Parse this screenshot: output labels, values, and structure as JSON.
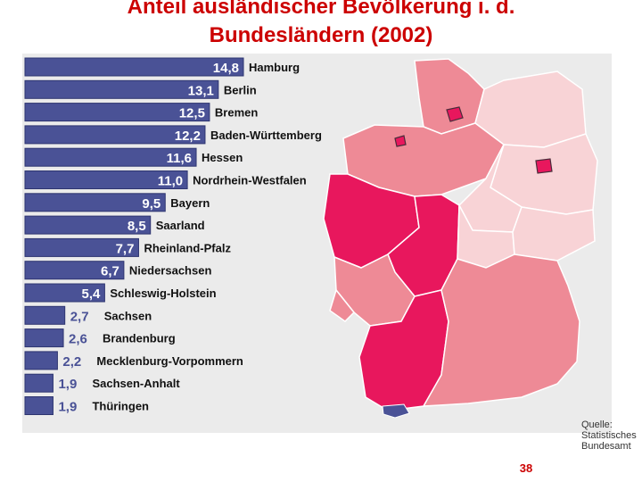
{
  "slide": {
    "title_line1": "Anteil ausländischer Bevölkerung i. d.",
    "title_line2": "Bundesländern (2002)",
    "page_number": "38"
  },
  "source": {
    "line1": "Quelle:",
    "line2": "Statistisches",
    "line3": "Bundesamt"
  },
  "colors": {
    "bar_fill": "#4a5296",
    "bar_border": "#2e3570",
    "map_dark": "#e8175d",
    "map_mid": "#ee8a96",
    "map_light": "#f8d3d6",
    "map_border": "#ffffff",
    "background": "#ebebeb",
    "title": "#cc0000"
  },
  "chart_data": {
    "type": "bar",
    "orientation": "horizontal",
    "title": "Anteil ausländischer Bevölkerung i. d. Bundesländern (2002)",
    "categories": [
      "Hamburg",
      "Berlin",
      "Bremen",
      "Baden-Württemberg",
      "Hessen",
      "Nordrhein-Westfalen",
      "Bayern",
      "Saarland",
      "Rheinland-Pfalz",
      "Niedersachsen",
      "Schleswig-Holstein",
      "Sachsen",
      "Brandenburg",
      "Mecklenburg-Vorpommern",
      "Sachsen-Anhalt",
      "Thüringen"
    ],
    "values": [
      14.8,
      13.1,
      12.5,
      12.2,
      11.6,
      11.0,
      9.5,
      8.5,
      7.7,
      6.7,
      5.4,
      2.7,
      2.6,
      2.2,
      1.9,
      1.9
    ],
    "value_labels": [
      "14,8",
      "13,1",
      "12,5",
      "12,2",
      "11,6",
      "11,0",
      "9,5",
      "8,5",
      "7,7",
      "6,7",
      "5,4",
      "2,7",
      "2,6",
      "2,2",
      "1,9",
      "1,9"
    ],
    "xlim": [
      0,
      14.8
    ],
    "grid": false,
    "legend": "none"
  }
}
